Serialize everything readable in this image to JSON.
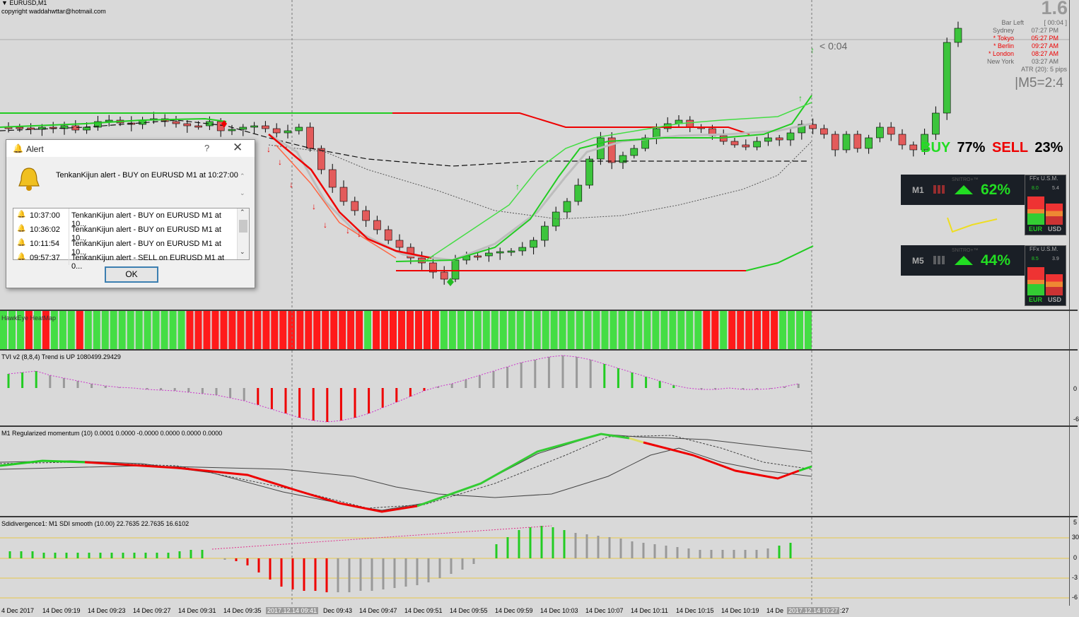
{
  "header": {
    "symbol": "EURUSD,M1",
    "copyright": "copyright waddahwttar@hotmail.com"
  },
  "price_big": "1.6",
  "info": {
    "bar_left_label": "Bar Left",
    "bar_left_value": "[ 00:04 ]",
    "sessions": [
      {
        "name": "Sydney",
        "time": "07:27 PM",
        "active": false
      },
      {
        "name": "* Tokyo",
        "time": "05:27 PM",
        "active": true
      },
      {
        "name": "* Berlin",
        "time": "09:27 AM",
        "active": true
      },
      {
        "name": "* London",
        "time": "08:27 AM",
        "active": true
      },
      {
        "name": "New York",
        "time": "03:27 AM",
        "active": false
      }
    ],
    "atr": "ATR (20): 5 pips",
    "m5_ratio": "|M5=2:4",
    "countdown": "< 0:04"
  },
  "buysell": {
    "buy_label": "BUY",
    "buy_pct": "77%",
    "sell_label": "SELL",
    "sell_pct": "23%"
  },
  "panels": [
    {
      "tf": "M1",
      "pct": "62%",
      "brand": "SNITRO+™",
      "gauge_title": "FFx U.S.M.",
      "left_val": "8.0",
      "right_val": "5.4",
      "left_cur": "EUR",
      "right_cur": "USD"
    },
    {
      "tf": "M5",
      "pct": "44%",
      "brand": "SNITRO+™",
      "gauge_title": "FFx U.S.M.",
      "left_val": "8.5",
      "right_val": "3.9",
      "left_cur": "EUR",
      "right_cur": "USD"
    }
  ],
  "alert": {
    "title": "Alert",
    "message": "TenkanKijun alert - BUY on EURUSD M1 at 10:27:00",
    "rows": [
      {
        "time": "10:37:00",
        "text": "TenkanKijun alert - BUY on EURUSD M1 at 10..."
      },
      {
        "time": "10:36:02",
        "text": "TenkanKijun alert - BUY on EURUSD M1 at 10..."
      },
      {
        "time": "10:11:54",
        "text": "TenkanKijun alert - BUY on EURUSD M1 at 10..."
      },
      {
        "time": "09:57:37",
        "text": "TenkanKijun alert - SELL on EURUSD M1 at 0..."
      }
    ],
    "ok_label": "OK"
  },
  "indicators": {
    "heiken": "HawkEye HeatMap",
    "tvi": "TVI v2 (8,8,4) Trend is UP 1080499.29429",
    "momentum": "M1 Regularized momentum (10) 0.0001 0.0000 -0.0000 0.0000 0.0000 0.0000",
    "sdi": "Sdidivergence1:  M1    SDI smooth (10.00) 22.7635 22.7635 16.6102"
  },
  "yaxis": {
    "tvi": [
      "0",
      "-6"
    ],
    "sdi": [
      "5",
      "30",
      "0",
      "-3",
      "-6"
    ]
  },
  "xaxis": [
    "4 Dec 2017",
    "14 Dec 09:19",
    "14 Dec 09:23",
    "14 Dec 09:27",
    "14 Dec 09:31",
    "14 Dec 09:35",
    "2017.12.14 09:41",
    "Dec 09:43",
    "14 Dec 09:47",
    "14 Dec 09:51",
    "14 Dec 09:55",
    "14 Dec 09:59",
    "14 Dec 10:03",
    "14 Dec 10:07",
    "14 Dec 10:11",
    "14 Dec 10:15",
    "14 Dec 10:19",
    "14 De",
    "2017.12.14 10:27",
    ":27"
  ],
  "colors": {
    "up": "#3cc43c",
    "down": "#e35b5b",
    "red": "#ff0000",
    "green": "#22cc22",
    "bg": "#d9d9d9"
  }
}
